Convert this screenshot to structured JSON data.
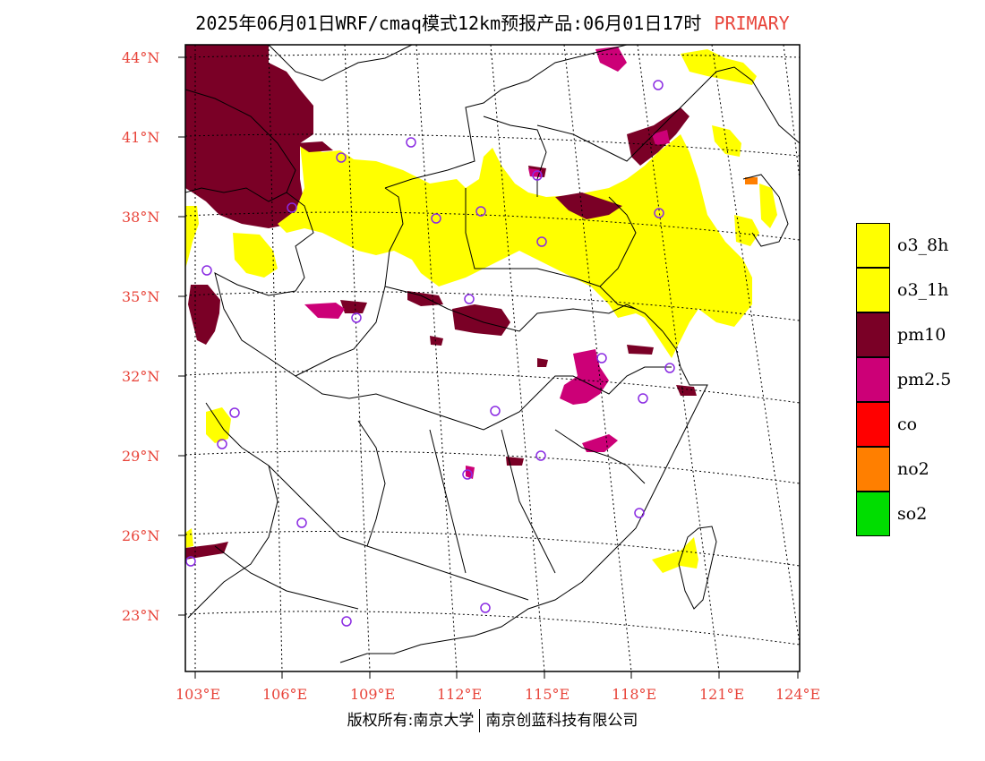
{
  "title": {
    "main": "2025年06月01日WRF/cmaq模式12km预报产品:06月01日17时",
    "tag": "PRIMARY",
    "tag_color": "#e8443a"
  },
  "map": {
    "lat_labels": [
      "44°N",
      "41°N",
      "38°N",
      "35°N",
      "32°N",
      "29°N",
      "26°N",
      "23°N"
    ],
    "lon_labels": [
      "103°E",
      "106°E",
      "109°E",
      "112°E",
      "115°E",
      "118°E",
      "121°E",
      "124°E"
    ],
    "station_marker_icon": "circle-outline-icon",
    "station_color": "#8a2be2"
  },
  "legend": {
    "items": [
      {
        "label": "o3_8h",
        "color": "#ffff00"
      },
      {
        "label": "o3_1h",
        "color": "#ffff00"
      },
      {
        "label": "pm10",
        "color": "#7a0026"
      },
      {
        "label": "pm2.5",
        "color": "#cc0077"
      },
      {
        "label": "co",
        "color": "#ff0000"
      },
      {
        "label": "no2",
        "color": "#ff7f00"
      },
      {
        "label": "so2",
        "color": "#00dd00"
      }
    ]
  },
  "footer": {
    "left": "版权所有:南京大学",
    "right": "南京创蓝科技有限公司"
  }
}
